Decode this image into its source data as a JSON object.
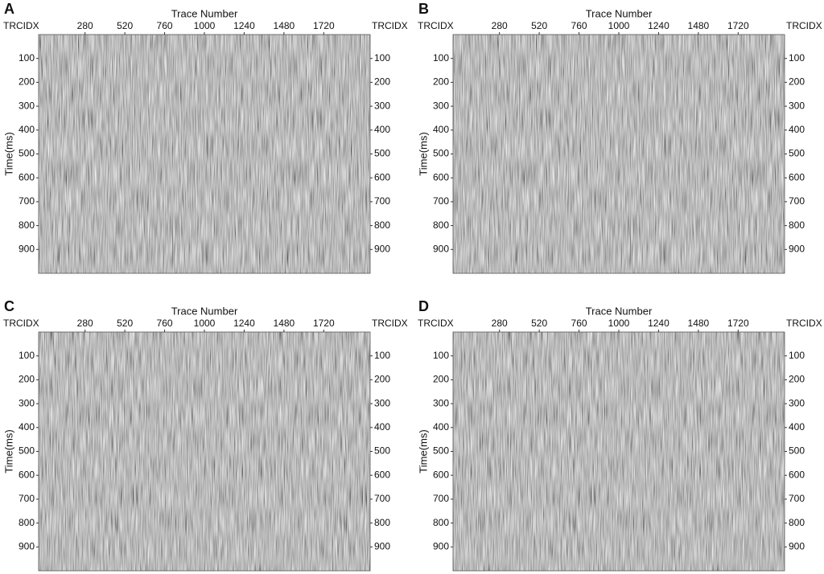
{
  "chart_data": [
    {
      "type": "image",
      "panel_label": "A",
      "x_label": "Trace Number",
      "y_label": "Time(ms)",
      "corner_label": "TRCIDX",
      "xlim": [
        0,
        2000
      ],
      "xticks": [
        280,
        520,
        760,
        1000,
        1240,
        1480,
        1720
      ],
      "ylim": [
        0,
        1000
      ],
      "yticks": [
        100,
        200,
        300,
        400,
        500,
        600,
        700,
        800,
        900
      ]
    },
    {
      "type": "image",
      "panel_label": "B",
      "x_label": "Trace Number",
      "y_label": "Time(ms)",
      "corner_label": "TRCIDX",
      "xlim": [
        0,
        2000
      ],
      "xticks": [
        280,
        520,
        760,
        1000,
        1240,
        1480,
        1720
      ],
      "ylim": [
        0,
        1000
      ],
      "yticks": [
        100,
        200,
        300,
        400,
        500,
        600,
        700,
        800,
        900
      ]
    },
    {
      "type": "image",
      "panel_label": "C",
      "x_label": "Trace Number",
      "y_label": "Time(ms)",
      "corner_label": "TRCIDX",
      "xlim": [
        0,
        2000
      ],
      "xticks": [
        280,
        520,
        760,
        1000,
        1240,
        1480,
        1720
      ],
      "ylim": [
        0,
        1000
      ],
      "yticks": [
        100,
        200,
        300,
        400,
        500,
        600,
        700,
        800,
        900
      ]
    },
    {
      "type": "image",
      "panel_label": "D",
      "x_label": "Trace Number",
      "y_label": "Time(ms)",
      "corner_label": "TRCIDX",
      "xlim": [
        0,
        2000
      ],
      "xticks": [
        280,
        520,
        760,
        1000,
        1240,
        1480,
        1720
      ],
      "ylim": [
        0,
        1000
      ],
      "yticks": [
        100,
        200,
        300,
        400,
        500,
        600,
        700,
        800,
        900
      ]
    }
  ]
}
